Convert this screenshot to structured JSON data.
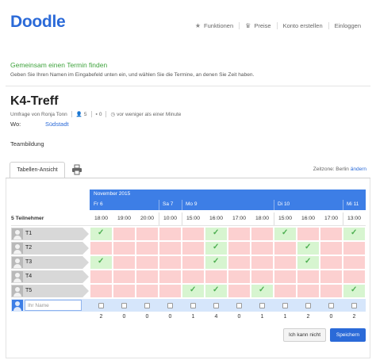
{
  "header": {
    "logo": "Doodle",
    "nav": [
      {
        "label": "Funktionen",
        "icon": "star-icon"
      },
      {
        "label": "Preise",
        "icon": "crown-icon"
      },
      {
        "label": "Konto erstellen",
        "icon": ""
      },
      {
        "label": "Einloggen",
        "icon": ""
      }
    ]
  },
  "intro": {
    "title": "Gemeinsam einen Termin finden",
    "subtitle": "Geben Sie Ihren Namen im Eingabefeld unten ein, und wählen Sie die Termine, an denen Sie Zeit haben."
  },
  "poll": {
    "title": "K4-Treff",
    "author": "Umfrage von Ronja Tonn",
    "participants_icon_count": "5",
    "comments_count": "0",
    "updated": "vor weniger als einer Minute",
    "where_label": "Wo:",
    "where_value": "Südstadt",
    "description": "Teambildung"
  },
  "tabs": {
    "table_view": "Tabellen-Ansicht",
    "timezone_label": "Zeitzone: Berlin",
    "timezone_change": "ändern"
  },
  "calendar": {
    "month": "November 2015",
    "days": [
      {
        "label": "Fr 6",
        "span": 3
      },
      {
        "label": "Sa 7",
        "span": 1
      },
      {
        "label": "Mo 9",
        "span": 4
      },
      {
        "label": "Di 10",
        "span": 3
      },
      {
        "label": "Mi 11",
        "span": 1
      }
    ],
    "times": [
      "18:00",
      "19:00",
      "20:00",
      "10:00",
      "15:00",
      "16:00",
      "17:00",
      "18:00",
      "15:00",
      "16:00",
      "17:00",
      "13:00"
    ],
    "participants_label": "5 Teilnehmer",
    "participants": [
      {
        "name": "T1",
        "votes": [
          1,
          0,
          0,
          0,
          0,
          1,
          0,
          0,
          1,
          0,
          0,
          1
        ]
      },
      {
        "name": "T2",
        "votes": [
          0,
          0,
          0,
          0,
          0,
          1,
          0,
          0,
          0,
          1,
          0,
          0
        ]
      },
      {
        "name": "T3",
        "votes": [
          1,
          0,
          0,
          0,
          0,
          1,
          0,
          0,
          0,
          1,
          0,
          0
        ]
      },
      {
        "name": "T4",
        "votes": [
          0,
          0,
          0,
          0,
          0,
          0,
          0,
          0,
          0,
          0,
          0,
          0
        ]
      },
      {
        "name": "T5",
        "votes": [
          0,
          0,
          0,
          0,
          1,
          1,
          0,
          1,
          0,
          0,
          0,
          1
        ]
      }
    ],
    "name_placeholder": "Ihr Name",
    "totals": [
      "2",
      "0",
      "0",
      "0",
      "1",
      "4",
      "0",
      "1",
      "1",
      "2",
      "0",
      "2"
    ]
  },
  "buttons": {
    "cannot": "Ich kann nicht",
    "save": "Speichern"
  },
  "colors": {
    "brand_blue": "#2b6ad8",
    "header_blue": "#3d7ee6",
    "yes_green": "#d7f5d0",
    "no_red": "#fcd0d0",
    "intro_green": "#3fa33d"
  }
}
